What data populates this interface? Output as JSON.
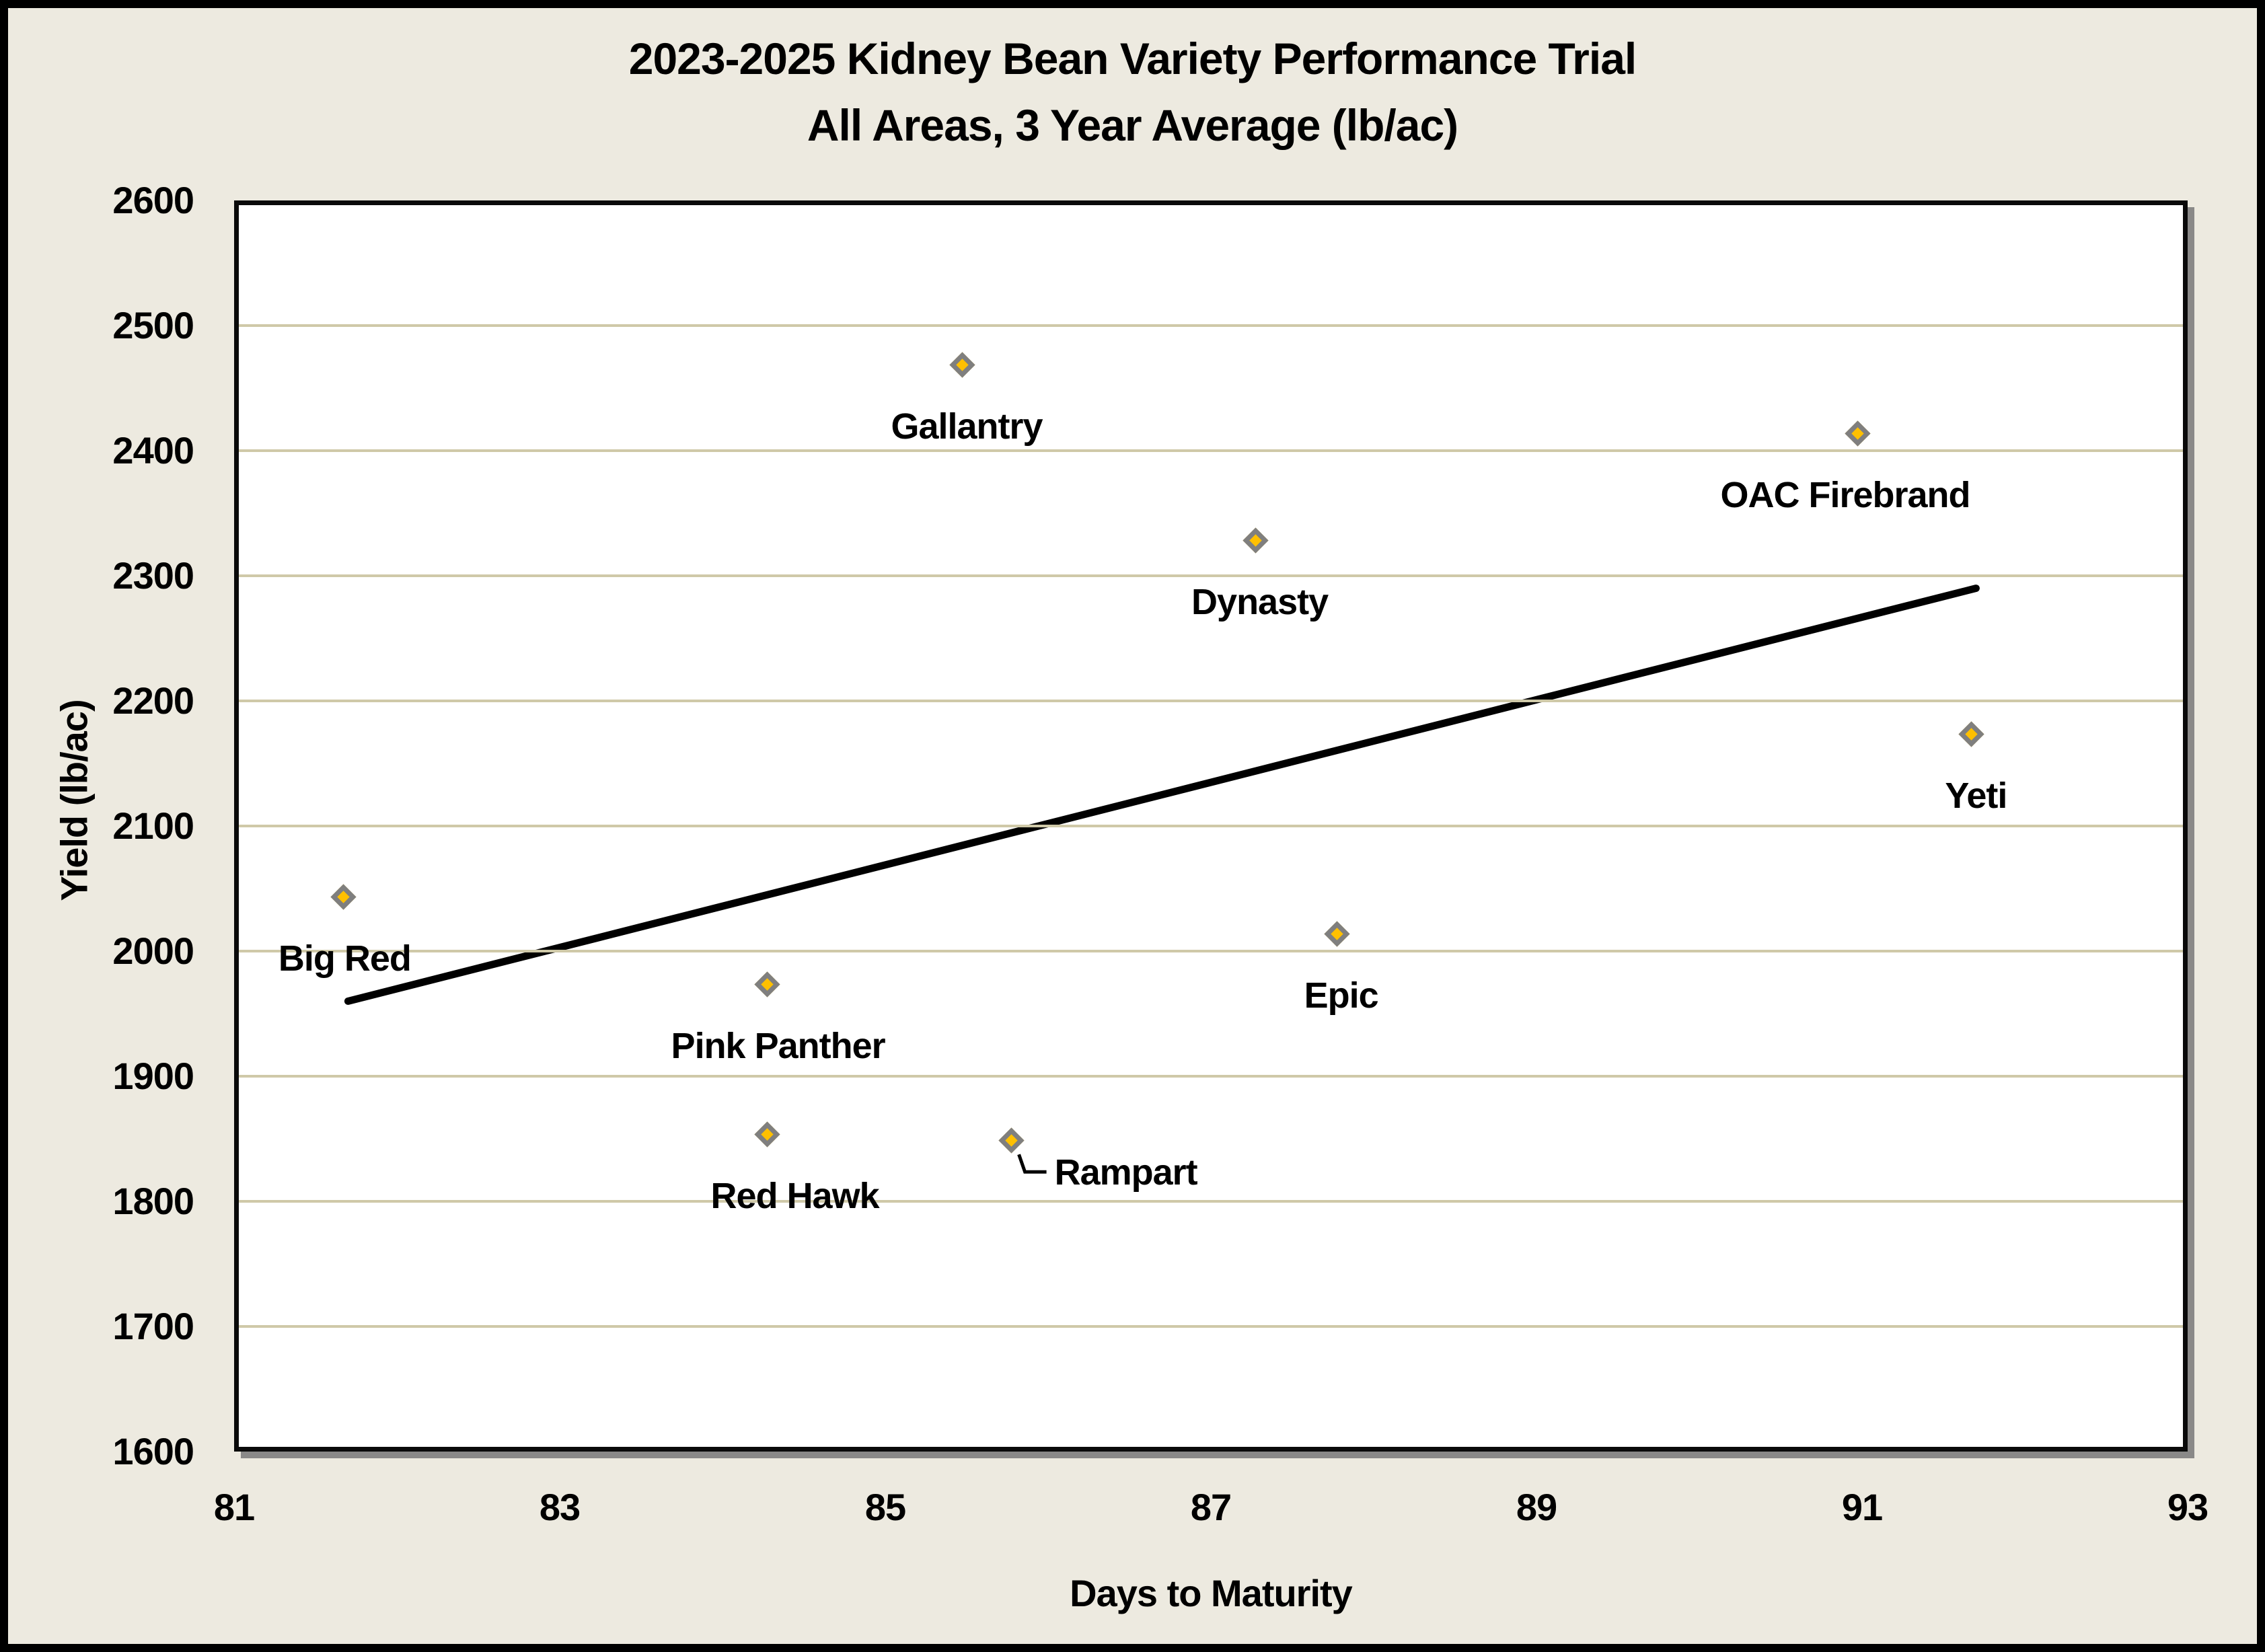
{
  "title": {
    "line1": "2023-2025 Kidney Bean Variety Performance Trial",
    "line2": "All Areas, 3 Year Average (lb/ac)"
  },
  "chart_data": {
    "type": "scatter",
    "title": "2023-2025 Kidney Bean Variety Performance Trial — All Areas, 3 Year Average (lb/ac)",
    "xlabel": "Days to Maturity",
    "ylabel": "Yield (lb/ac)",
    "xlim": [
      81,
      93
    ],
    "ylim": [
      1600,
      2600
    ],
    "xticks": [
      81,
      83,
      85,
      87,
      89,
      91,
      93
    ],
    "yticks": [
      1600,
      1700,
      1800,
      1900,
      2000,
      2100,
      2200,
      2300,
      2400,
      2500,
      2600
    ],
    "grid": "horizontal-only",
    "legend": "none",
    "marker": {
      "shape": "diamond",
      "fill": "#FFC000",
      "stroke": "#7F7F7F"
    },
    "points": [
      {
        "label": "Big Red",
        "x": 81.7,
        "y": 2040,
        "label_placement": "below",
        "label_dx": -5
      },
      {
        "label": "Pink Panther",
        "x": 84.3,
        "y": 1970,
        "label_placement": "below",
        "label_dx": 10
      },
      {
        "label": "Red Hawk",
        "x": 84.3,
        "y": 1850,
        "label_placement": "below",
        "label_dx": 35
      },
      {
        "label": "Rampart",
        "x": 85.8,
        "y": 1845,
        "label_placement": "right-leader",
        "label_dx": 0
      },
      {
        "label": "Gallantry",
        "x": 85.5,
        "y": 2465,
        "label_placement": "below",
        "label_dx": 0
      },
      {
        "label": "Dynasty",
        "x": 87.3,
        "y": 2325,
        "label_placement": "below",
        "label_dx": 0
      },
      {
        "label": "Epic",
        "x": 87.8,
        "y": 2010,
        "label_placement": "below",
        "label_dx": 0
      },
      {
        "label": "OAC Firebrand",
        "x": 91.0,
        "y": 2410,
        "label_placement": "below",
        "label_dx": -25
      },
      {
        "label": "Yeti",
        "x": 91.7,
        "y": 2170,
        "label_placement": "below",
        "label_dx": 0
      }
    ],
    "trendline": {
      "x1": 81.7,
      "y1": 1960,
      "x2": 91.7,
      "y2": 2290,
      "color": "#000000"
    }
  },
  "colors": {
    "page_background": "#EDEAE0",
    "outer_border": "#000000",
    "plot_background": "#FFFFFF",
    "plot_border": "#0A0A0A",
    "gridline": "#CFC9A8",
    "marker_fill": "#FFC000",
    "marker_stroke": "#7F7F7F",
    "text": "#000000"
  }
}
